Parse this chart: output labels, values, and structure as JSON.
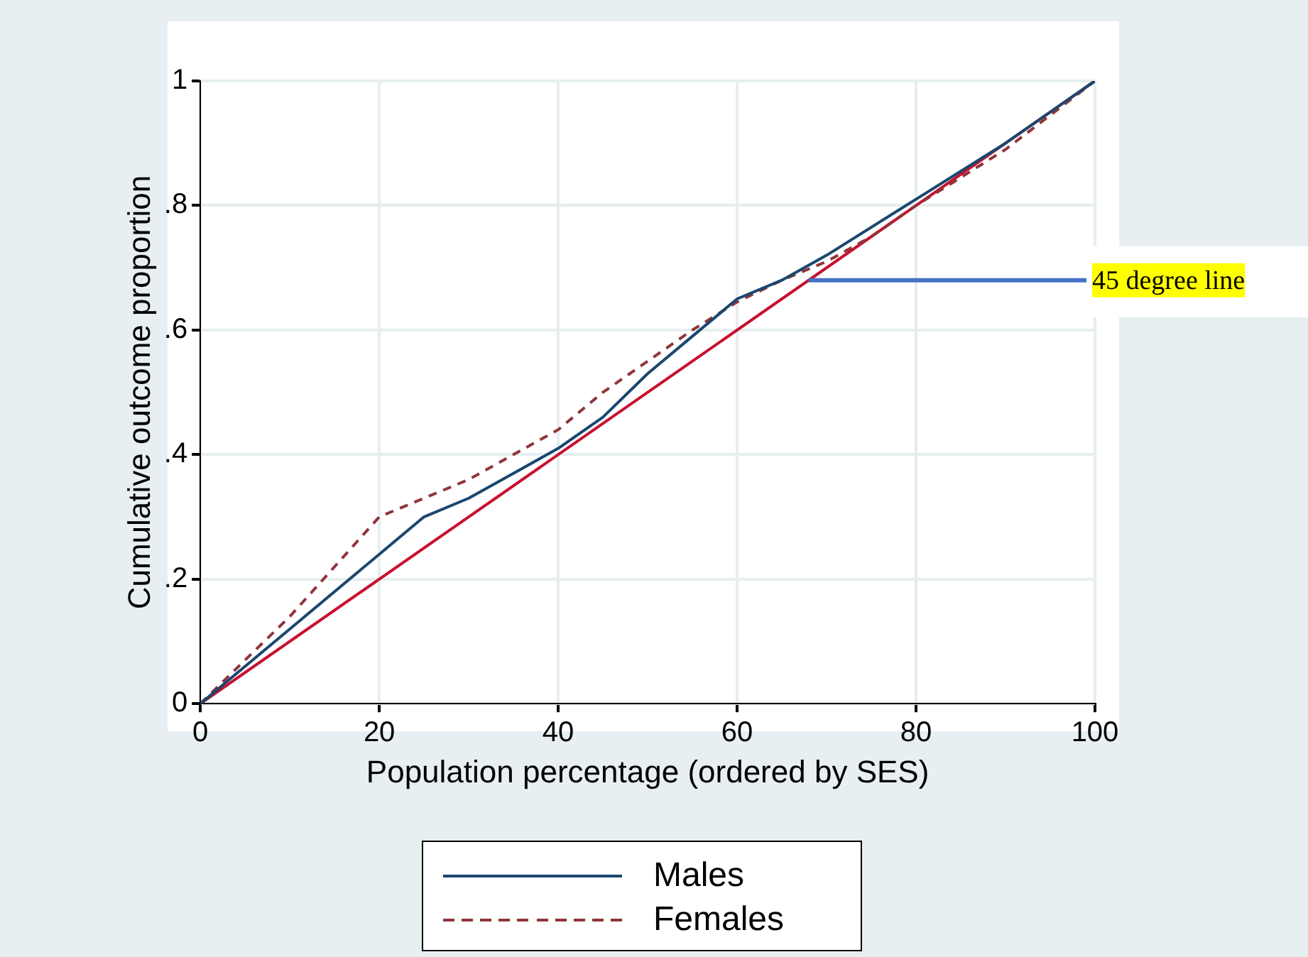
{
  "chart_data": {
    "type": "line",
    "xlabel": "Population percentage (ordered by SES)",
    "ylabel": "Cumulative outcome proportion",
    "xlim": [
      0,
      100
    ],
    "xticks": [
      0,
      20,
      40,
      60,
      80,
      100
    ],
    "ylim": [
      0,
      1
    ],
    "yticks": [
      {
        "value": 0,
        "label": "0"
      },
      {
        "value": 0.2,
        "label": ".2"
      },
      {
        "value": 0.4,
        "label": ".4"
      },
      {
        "value": 0.6,
        "label": ".6"
      },
      {
        "value": 0.8,
        "label": ".8"
      },
      {
        "value": 1,
        "label": "1"
      }
    ],
    "grid": true,
    "legend": "bottom",
    "marker": "none",
    "series": [
      {
        "name": "Males",
        "color": "#1a476f",
        "line_style": "solid",
        "x": [
          0,
          10,
          20,
          25,
          30,
          35,
          40,
          45,
          50,
          55,
          60,
          65,
          70,
          80,
          90,
          100
        ],
        "values": [
          0,
          0.12,
          0.24,
          0.3,
          0.33,
          0.37,
          0.41,
          0.46,
          0.53,
          0.59,
          0.65,
          0.68,
          0.72,
          0.81,
          0.9,
          1
        ]
      },
      {
        "name": "Females",
        "color": "#90353b",
        "line_style": "dashed",
        "x": [
          0,
          5,
          10,
          15,
          20,
          25,
          30,
          35,
          40,
          45,
          50,
          55,
          60,
          65,
          70,
          75,
          80,
          90,
          100
        ],
        "values": [
          0,
          0.07,
          0.14,
          0.22,
          0.3,
          0.33,
          0.36,
          0.4,
          0.44,
          0.5,
          0.55,
          0.6,
          0.645,
          0.68,
          0.71,
          0.75,
          0.8,
          0.89,
          1
        ]
      },
      {
        "color": "#c8102e",
        "line_style": "solid",
        "x": [
          0,
          100
        ],
        "values": [
          0,
          1
        ]
      }
    ],
    "annotations": [
      {
        "text": "45 degree line",
        "x": 68,
        "y": 0.68
      }
    ]
  }
}
